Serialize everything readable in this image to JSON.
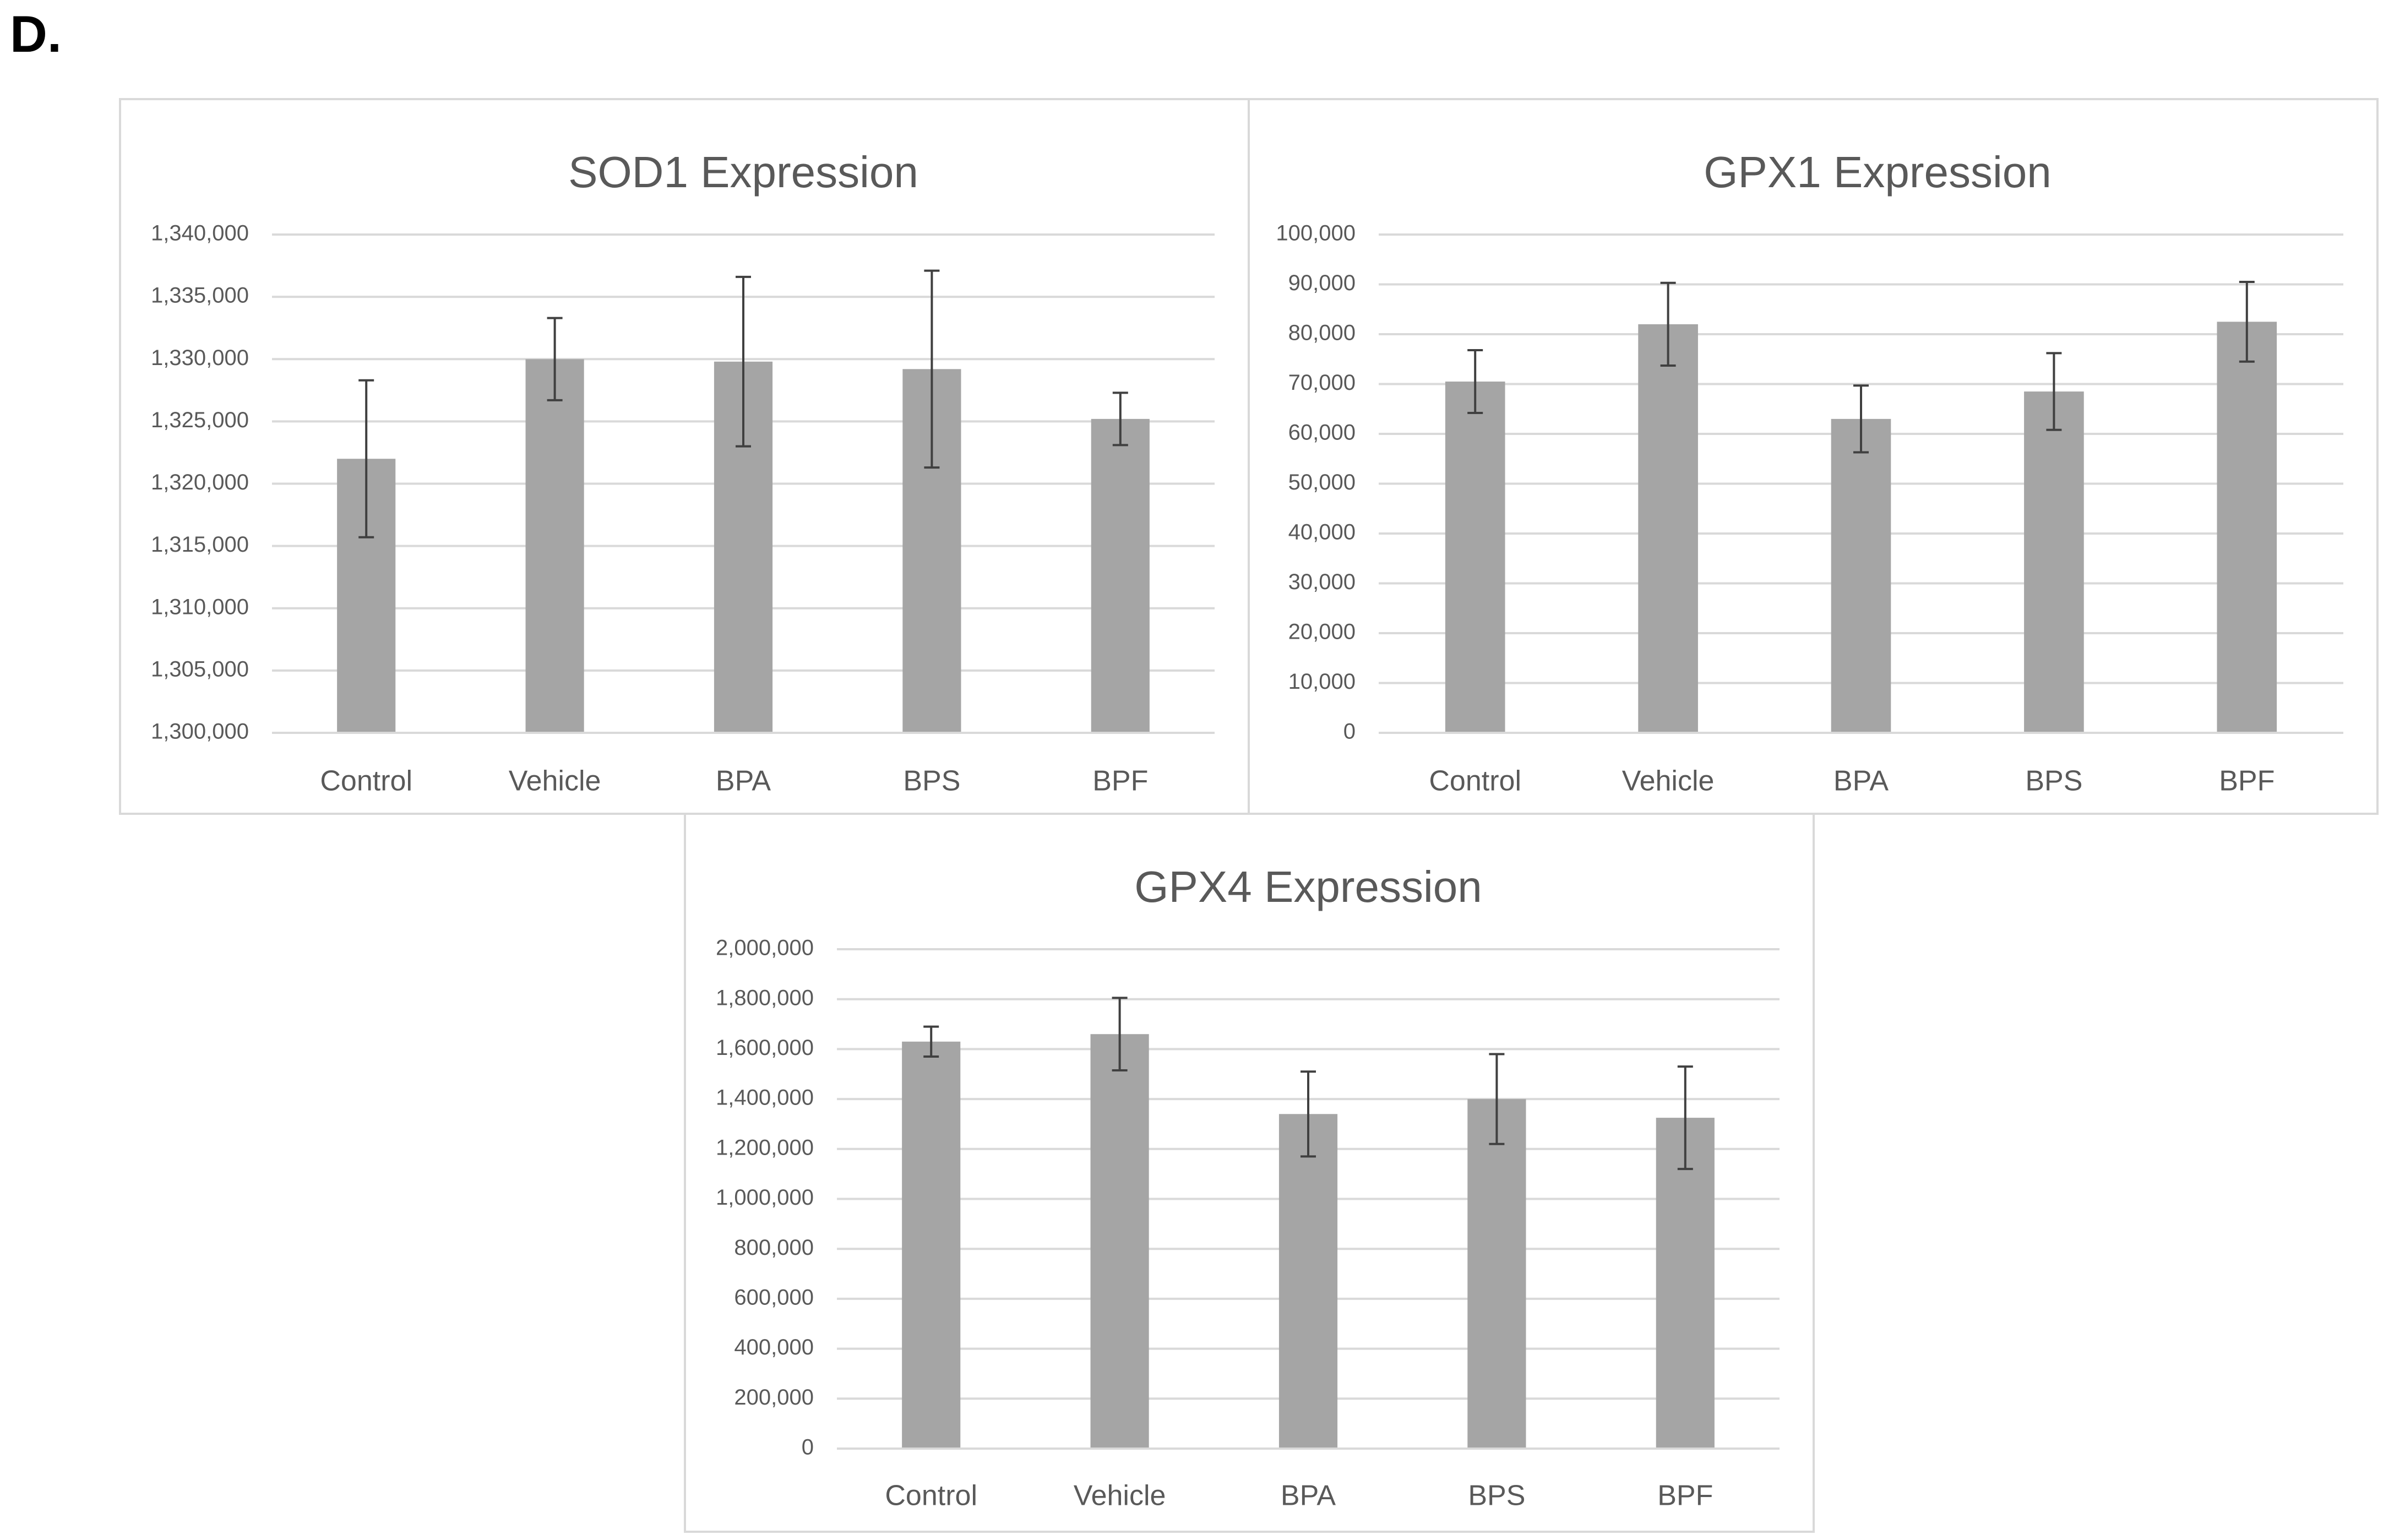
{
  "panel_label": "D.",
  "colors": {
    "bar": "#a5a5a5",
    "grid": "#d9d9d9",
    "text": "#595959",
    "error": "#404040",
    "border": "#d9d9d9"
  },
  "chart_data": [
    {
      "type": "bar",
      "title": "SOD1 Expression",
      "categories": [
        "Control",
        "Vehicle",
        "BPA",
        "BPS",
        "BPF"
      ],
      "values": [
        1322000,
        1330000,
        1329800,
        1329200,
        1325200
      ],
      "errors": [
        6300,
        3300,
        6800,
        7900,
        2100
      ],
      "ylim": [
        1300000,
        1340000
      ],
      "yticks": [
        1300000,
        1305000,
        1310000,
        1315000,
        1320000,
        1325000,
        1330000,
        1335000,
        1340000
      ],
      "ytick_labels": [
        "1,300,000",
        "1,305,000",
        "1,310,000",
        "1,315,000",
        "1,320,000",
        "1,325,000",
        "1,330,000",
        "1,335,000",
        "1,340,000"
      ],
      "xlabel": "",
      "ylabel": ""
    },
    {
      "type": "bar",
      "title": "GPX1 Expression",
      "categories": [
        "Control",
        "Vehicle",
        "BPA",
        "BPS",
        "BPF"
      ],
      "values": [
        70500,
        82000,
        63000,
        68500,
        82500
      ],
      "errors": [
        6300,
        8300,
        6700,
        7700,
        8000
      ],
      "ylim": [
        0,
        100000
      ],
      "yticks": [
        0,
        10000,
        20000,
        30000,
        40000,
        50000,
        60000,
        70000,
        80000,
        90000,
        100000
      ],
      "ytick_labels": [
        "0",
        "10,000",
        "20,000",
        "30,000",
        "40,000",
        "50,000",
        "60,000",
        "70,000",
        "80,000",
        "90,000",
        "100,000"
      ],
      "xlabel": "",
      "ylabel": ""
    },
    {
      "type": "bar",
      "title": "GPX4 Expression",
      "categories": [
        "Control",
        "Vehicle",
        "BPA",
        "BPS",
        "BPF"
      ],
      "values": [
        1630000,
        1660000,
        1340000,
        1400000,
        1325000
      ],
      "errors": [
        60000,
        145000,
        170000,
        180000,
        205000
      ],
      "ylim": [
        0,
        2000000
      ],
      "yticks": [
        0,
        200000,
        400000,
        600000,
        800000,
        1000000,
        1200000,
        1400000,
        1600000,
        1800000,
        2000000
      ],
      "ytick_labels": [
        "0",
        "200,000",
        "400,000",
        "600,000",
        "800,000",
        "1,000,000",
        "1,200,000",
        "1,400,000",
        "1,600,000",
        "1,800,000",
        "2,000,000"
      ],
      "xlabel": "",
      "ylabel": ""
    }
  ]
}
